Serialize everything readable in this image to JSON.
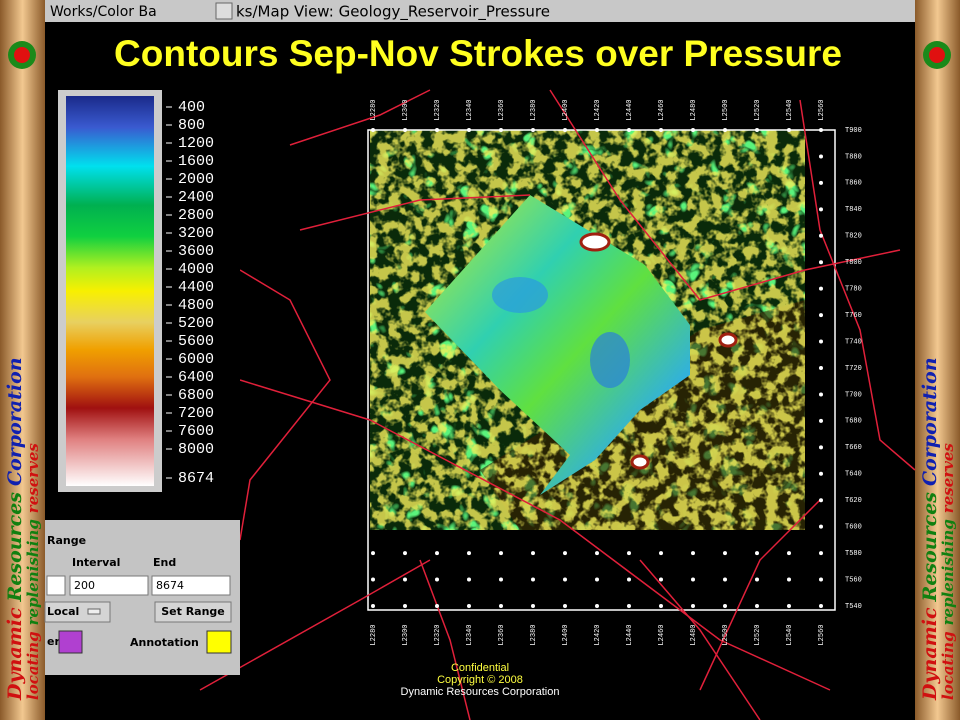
{
  "window": {
    "left_title": "Works/Color Ba",
    "right_title": "ks/Map View: Geology_Reservoir_Pressure"
  },
  "slide": {
    "title": "Contours Sep-Nov Strokes over Pressure",
    "footer": [
      "Confidential",
      "Copyright © 2008",
      "Dynamic Resources Corporation"
    ]
  },
  "banner": {
    "words": [
      "Dynamic",
      "Resources",
      "Corporation"
    ],
    "tagline": [
      "locating",
      "replenishing",
      "reserves"
    ]
  },
  "color_bar": {
    "labels": [
      400,
      800,
      1200,
      1600,
      2000,
      2400,
      2800,
      3200,
      3600,
      4000,
      4400,
      4800,
      5200,
      5600,
      6000,
      6400,
      6800,
      7200,
      7600,
      8000,
      8674
    ]
  },
  "range_panel": {
    "heading": "Range",
    "interval_label": "Interval",
    "end_label": "End",
    "interval_value": "200",
    "end_value": "8674",
    "mode": "Local",
    "set_button": "Set Range",
    "color_label": "er",
    "annotation_label": "Annotation"
  },
  "map": {
    "right_labels": [
      "T900",
      "T880",
      "T860",
      "T840",
      "T820",
      "T800",
      "T780",
      "T760",
      "T740",
      "T720",
      "T700",
      "T680",
      "T660",
      "T640",
      "T620",
      "T600",
      "T580",
      "T560",
      "T540"
    ],
    "bottom_labels": [
      "L2280",
      "L2300",
      "L2320",
      "L2340",
      "L2360",
      "L2380",
      "L2400",
      "L2420",
      "L2440",
      "L2460",
      "L2480",
      "L2500",
      "L2520",
      "L2540",
      "L2560"
    ]
  }
}
